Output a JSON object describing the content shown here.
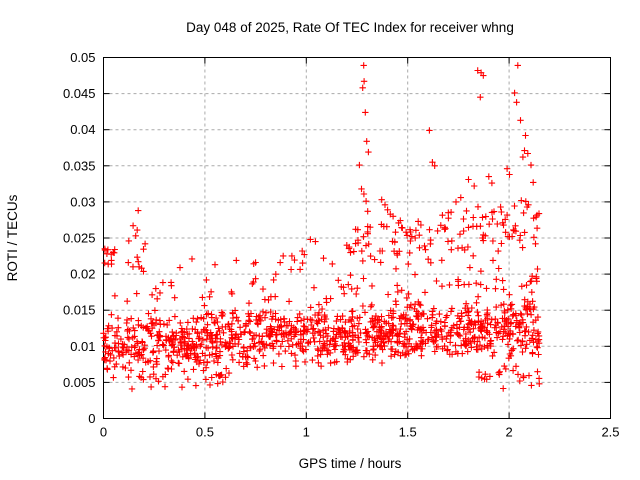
{
  "chart_data": {
    "type": "scatter",
    "title": "Day 048 of 2025, Rate Of TEC Index for receiver whng",
    "xlabel": "GPS time / hours",
    "ylabel": "ROTI / TECUs",
    "xlim": [
      0,
      2.5
    ],
    "ylim": [
      0,
      0.05
    ],
    "x_ticks": {
      "values": [
        0,
        0.5,
        1,
        1.5,
        2,
        2.5
      ],
      "labels": [
        "0",
        "0.5",
        "1",
        "1.5",
        "2",
        "2.5"
      ]
    },
    "y_ticks": {
      "values": [
        0,
        0.005,
        0.01,
        0.015,
        0.02,
        0.025,
        0.03,
        0.035,
        0.04,
        0.045,
        0.05
      ],
      "labels": [
        "0",
        "0.005",
        "0.01",
        "0.015",
        "0.02",
        "0.025",
        "0.03",
        "0.035",
        "0.04",
        "0.045",
        "0.05"
      ]
    },
    "grid": {
      "enabled": true,
      "color": "#aaaaaa",
      "dash": "3 3"
    },
    "style": {
      "marker_shape": "plus",
      "marker_color": "#ff0000",
      "marker_size": 7,
      "axis_color": "#000000",
      "background": "#ffffff"
    },
    "data_x_extent": [
      0,
      2.15
    ],
    "outlier_points": [
      [
        0.171,
        0.0288
      ],
      [
        0.146,
        0.0267
      ],
      [
        0.166,
        0.0261
      ],
      [
        0.159,
        0.0253
      ],
      [
        0.125,
        0.0246
      ],
      [
        0.205,
        0.0242
      ],
      [
        0.55,
        0.0213
      ],
      [
        0.75,
        0.0216
      ],
      [
        0.98,
        0.0232
      ],
      [
        1.02,
        0.0248
      ],
      [
        1.045,
        0.0245
      ],
      [
        1.085,
        0.0222
      ],
      [
        1.283,
        0.0489
      ],
      [
        1.285,
        0.0467
      ],
      [
        1.278,
        0.0458
      ],
      [
        1.291,
        0.0424
      ],
      [
        1.298,
        0.0384
      ],
      [
        1.306,
        0.0369
      ],
      [
        1.262,
        0.0351
      ],
      [
        1.272,
        0.0318
      ],
      [
        1.284,
        0.0311
      ],
      [
        1.295,
        0.0301
      ],
      [
        1.303,
        0.0287
      ],
      [
        1.243,
        0.0262
      ],
      [
        1.255,
        0.0247
      ],
      [
        1.315,
        0.0265
      ],
      [
        1.372,
        0.0303
      ],
      [
        1.388,
        0.0296
      ],
      [
        1.401,
        0.0289
      ],
      [
        1.414,
        0.0283
      ],
      [
        1.428,
        0.028
      ],
      [
        1.382,
        0.0266
      ],
      [
        1.44,
        0.0258
      ],
      [
        1.607,
        0.0399
      ],
      [
        1.622,
        0.0355
      ],
      [
        1.633,
        0.035
      ],
      [
        1.552,
        0.0273
      ],
      [
        1.565,
        0.0268
      ],
      [
        1.492,
        0.0258
      ],
      [
        1.52,
        0.0252
      ],
      [
        1.845,
        0.0482
      ],
      [
        1.862,
        0.0479
      ],
      [
        1.873,
        0.0475
      ],
      [
        1.858,
        0.0445
      ],
      [
        1.8,
        0.0331
      ],
      [
        1.828,
        0.0322
      ],
      [
        1.762,
        0.0306
      ],
      [
        1.738,
        0.03
      ],
      [
        1.7,
        0.0285
      ],
      [
        1.682,
        0.0262
      ],
      [
        1.9,
        0.0335
      ],
      [
        1.915,
        0.0326
      ],
      [
        2.043,
        0.0489
      ],
      [
        2.027,
        0.0451
      ],
      [
        2.037,
        0.0438
      ],
      [
        2.056,
        0.0413
      ],
      [
        2.081,
        0.0392
      ],
      [
        2.076,
        0.0371
      ],
      [
        2.092,
        0.0367
      ],
      [
        2.068,
        0.0362
      ],
      [
        2.108,
        0.0351
      ],
      [
        1.99,
        0.0346
      ],
      [
        2.002,
        0.0338
      ],
      [
        2.119,
        0.0327
      ],
      [
        1.962,
        0.0286
      ],
      [
        2.133,
        0.0279
      ],
      [
        2.13,
        0.0242
      ],
      [
        2.06,
        0.0302
      ],
      [
        2.095,
        0.0296
      ]
    ],
    "band_clusters": [
      {
        "x0": 0.0,
        "x1": 2.15,
        "count": 1120,
        "y0": 0.0102,
        "y1": 0.0126,
        "spread": 0.0047
      },
      {
        "x0": 0.05,
        "x1": 2.15,
        "count": 85,
        "y0": 0.0172,
        "y1": 0.0188,
        "spread": 0.0028
      },
      {
        "x0": 0.12,
        "x1": 0.62,
        "count": 30,
        "y0": 0.0056,
        "y1": 0.0056,
        "spread": 0.002
      },
      {
        "x0": 1.85,
        "x1": 2.15,
        "count": 24,
        "y0": 0.006,
        "y1": 0.0056,
        "spread": 0.002
      },
      {
        "x0": 0.0,
        "x1": 0.06,
        "count": 12,
        "y0": 0.0226,
        "y1": 0.0226,
        "spread": 0.0018
      },
      {
        "x0": 0.1,
        "x1": 0.2,
        "count": 8,
        "y0": 0.0218,
        "y1": 0.0218,
        "spread": 0.0028
      },
      {
        "x0": 1.18,
        "x1": 1.65,
        "count": 52,
        "y0": 0.0238,
        "y1": 0.0246,
        "spread": 0.0038
      },
      {
        "x0": 1.65,
        "x1": 2.15,
        "count": 66,
        "y0": 0.0255,
        "y1": 0.0268,
        "spread": 0.0048
      },
      {
        "x0": 0.3,
        "x1": 1.18,
        "count": 13,
        "y0": 0.0214,
        "y1": 0.0218,
        "spread": 0.0016
      }
    ]
  }
}
